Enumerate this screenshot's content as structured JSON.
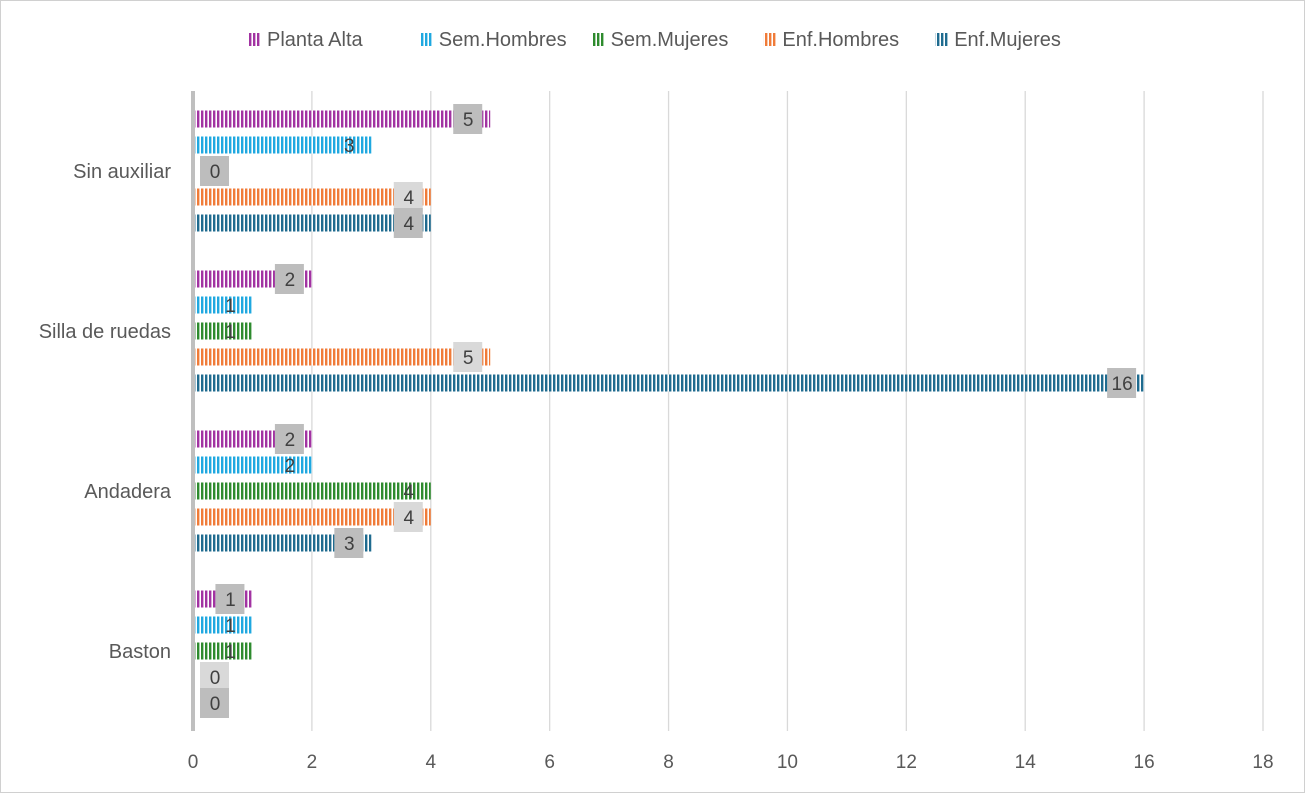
{
  "chart_data": {
    "type": "bar",
    "orientation": "horizontal",
    "title": "",
    "xlabel": "",
    "ylabel": "",
    "xlim": [
      0,
      18
    ],
    "xticks": [
      "0",
      "2",
      "4",
      "6",
      "8",
      "10",
      "12",
      "14",
      "16",
      "18"
    ],
    "grid": true,
    "legend_position": "top-center",
    "categories": [
      "Sin auxiliar",
      "Silla de ruedas",
      "Andadera",
      "Baston"
    ],
    "series": [
      {
        "name": "Planta Alta",
        "color": "#a233a2",
        "values": [
          5,
          2,
          2,
          1
        ]
      },
      {
        "name": "Sem.Hombres",
        "color": "#1fa8e0",
        "values": [
          3,
          1,
          2,
          1
        ]
      },
      {
        "name": "Sem.Mujeres",
        "color": "#2e8b2e",
        "values": [
          0,
          1,
          4,
          1
        ]
      },
      {
        "name": "Enf.Hombres",
        "color": "#f07b38",
        "values": [
          4,
          5,
          4,
          0
        ]
      },
      {
        "name": "Enf.Mujeres",
        "color": "#1f6b8f",
        "values": [
          4,
          16,
          3,
          0
        ]
      }
    ]
  }
}
